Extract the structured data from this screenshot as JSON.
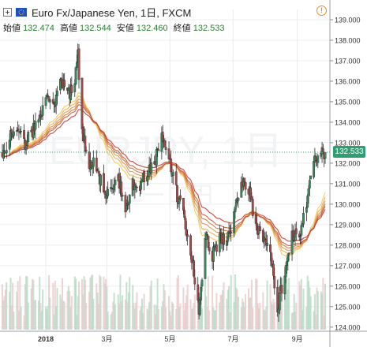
{
  "header": {
    "title": "Euro Fx/Japanese Yen, 1日, FXCM",
    "ohlc": [
      {
        "label": "始値",
        "value": "132.474"
      },
      {
        "label": "高値",
        "value": "132.544"
      },
      {
        "label": "安値",
        "value": "132.460"
      },
      {
        "label": "終値",
        "value": "132.533"
      }
    ]
  },
  "watermark": {
    "main": "EURJPY, 1日",
    "sub": "ユーロ円"
  },
  "last_price": "132.533",
  "colors": {
    "up": "#3c8a5b",
    "down": "#a84a4a",
    "grid": "#e9ecef",
    "ribbon_short": "#f3c85a",
    "ribbon_long": "#c0392b",
    "volume": "#b8d8c4",
    "last_price_bg": "#2f9e73"
  },
  "chart_data": {
    "type": "candlestick",
    "title": "Euro Fx/Japanese Yen, 1日, FXCM",
    "y_range": [
      123.8,
      139.5
    ],
    "y_ticks": [
      "139.000",
      "138.000",
      "137.000",
      "136.000",
      "135.000",
      "134.000",
      "133.000",
      "132.000",
      "131.000",
      "130.000",
      "129.000",
      "128.000",
      "127.000",
      "126.000",
      "125.000",
      "124.000"
    ],
    "x_ticks": [
      "2018",
      "3月",
      "5月",
      "7月",
      "9月"
    ],
    "x_tick_dates": [
      "2018-01-01",
      "2018-03-01",
      "2018-05-01",
      "2018-07-01",
      "2018-09-01"
    ],
    "date_range": [
      "2017-11-20",
      "2018-09-28"
    ],
    "price_path": [
      [
        "2017-11-20",
        132.6
      ],
      [
        "2017-11-27",
        133.2
      ],
      [
        "2017-12-04",
        133.7
      ],
      [
        "2017-12-11",
        132.9
      ],
      [
        "2017-12-18",
        133.4
      ],
      [
        "2017-12-25",
        134.2
      ],
      [
        "2018-01-01",
        135.3
      ],
      [
        "2018-01-08",
        134.6
      ],
      [
        "2018-01-15",
        136.2
      ],
      [
        "2018-01-22",
        135.3
      ],
      [
        "2018-01-29",
        136.0
      ],
      [
        "2018-02-01",
        137.3
      ],
      [
        "2018-02-05",
        133.6
      ],
      [
        "2018-02-12",
        132.0
      ],
      [
        "2018-02-19",
        131.9
      ],
      [
        "2018-02-26",
        130.5
      ],
      [
        "2018-03-05",
        130.8
      ],
      [
        "2018-03-12",
        131.3
      ],
      [
        "2018-03-19",
        129.7
      ],
      [
        "2018-03-26",
        131.0
      ],
      [
        "2018-04-02",
        130.9
      ],
      [
        "2018-04-09",
        131.6
      ],
      [
        "2018-04-16",
        132.1
      ],
      [
        "2018-04-23",
        133.2
      ],
      [
        "2018-04-30",
        132.2
      ],
      [
        "2018-05-07",
        130.6
      ],
      [
        "2018-05-14",
        129.5
      ],
      [
        "2018-05-21",
        127.8
      ],
      [
        "2018-05-29",
        124.8
      ],
      [
        "2018-06-04",
        128.5
      ],
      [
        "2018-06-11",
        127.5
      ],
      [
        "2018-06-18",
        128.3
      ],
      [
        "2018-06-25",
        128.3
      ],
      [
        "2018-07-02",
        129.5
      ],
      [
        "2018-07-09",
        131.2
      ],
      [
        "2018-07-16",
        130.8
      ],
      [
        "2018-07-23",
        129.0
      ],
      [
        "2018-07-30",
        128.3
      ],
      [
        "2018-08-06",
        127.5
      ],
      [
        "2018-08-13",
        125.0
      ],
      [
        "2018-08-20",
        126.6
      ],
      [
        "2018-08-27",
        128.4
      ],
      [
        "2018-09-03",
        128.5
      ],
      [
        "2018-09-10",
        130.0
      ],
      [
        "2018-09-17",
        132.1
      ],
      [
        "2018-09-24",
        132.5
      ]
    ],
    "last": 132.533
  }
}
